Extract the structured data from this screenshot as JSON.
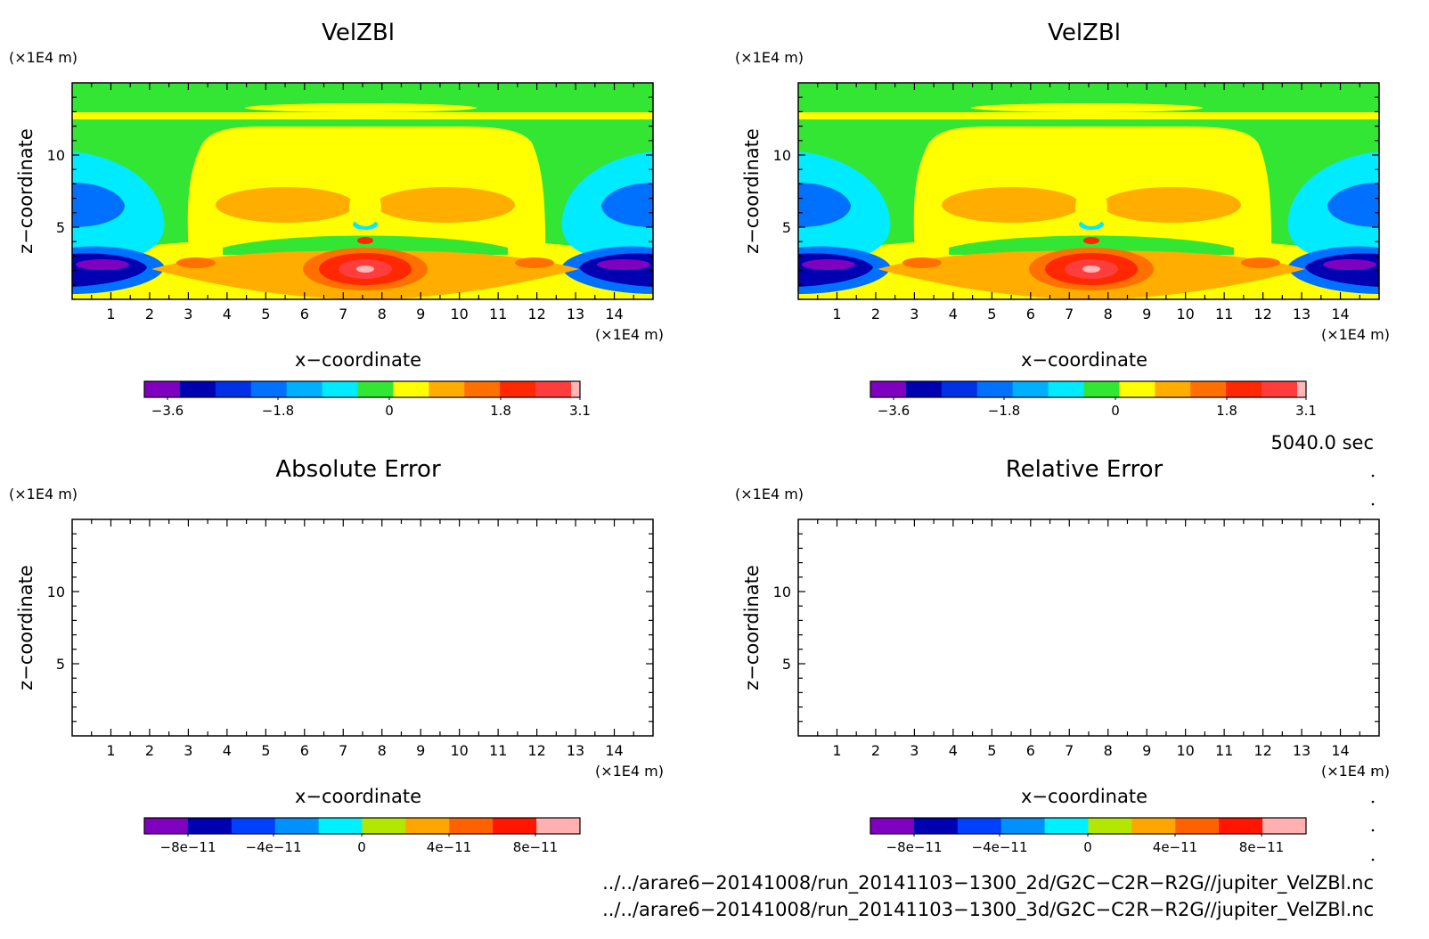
{
  "chart_data": [
    {
      "id": "tl",
      "type": "heatmap",
      "title": "VelZBl",
      "ylabel": "z−coordinate",
      "xlabel": "x−coordinate",
      "x_unit": "(×1E4 m)",
      "y_unit": "(×1E4 m)",
      "xlim": [
        0,
        15
      ],
      "ylim": [
        0,
        15
      ],
      "x_ticks": [
        "1",
        "2",
        "3",
        "4",
        "5",
        "6",
        "7",
        "8",
        "9",
        "10",
        "11",
        "12",
        "13",
        "14"
      ],
      "y_ticks": [
        "5",
        "10"
      ],
      "colorbar": {
        "labels": [
          "−3.6",
          "−1.8",
          "0",
          "1.8",
          "3.1"
        ],
        "colors": [
          "#7f00bf",
          "#0000b3",
          "#0030e6",
          "#0070ff",
          "#00b0ff",
          "#00ebff",
          "#33e633",
          "#ffff00",
          "#ffae00",
          "#ff7000",
          "#ff2800",
          "#ff3d3d",
          "#ffb6b6"
        ]
      },
      "filled": true
    },
    {
      "id": "tr",
      "type": "heatmap",
      "title": "VelZBl",
      "ylabel": "z−coordinate",
      "xlabel": "x−coordinate",
      "x_unit": "(×1E4 m)",
      "y_unit": "(×1E4 m)",
      "xlim": [
        0,
        15
      ],
      "ylim": [
        0,
        15
      ],
      "x_ticks": [
        "1",
        "2",
        "3",
        "4",
        "5",
        "6",
        "7",
        "8",
        "9",
        "10",
        "11",
        "12",
        "13",
        "14"
      ],
      "y_ticks": [
        "5",
        "10"
      ],
      "colorbar": {
        "labels": [
          "−3.6",
          "−1.8",
          "0",
          "1.8",
          "3.1"
        ],
        "colors": [
          "#7f00bf",
          "#0000b3",
          "#0030e6",
          "#0070ff",
          "#00b0ff",
          "#00ebff",
          "#33e633",
          "#ffff00",
          "#ffae00",
          "#ff7000",
          "#ff2800",
          "#ff3d3d",
          "#ffb6b6"
        ]
      },
      "filled": true
    },
    {
      "id": "bl",
      "type": "heatmap",
      "title": "Absolute Error",
      "ylabel": "z−coordinate",
      "xlabel": "x−coordinate",
      "x_unit": "(×1E4 m)",
      "y_unit": "(×1E4 m)",
      "xlim": [
        0,
        15
      ],
      "ylim": [
        0,
        15
      ],
      "x_ticks": [
        "1",
        "2",
        "3",
        "4",
        "5",
        "6",
        "7",
        "8",
        "9",
        "10",
        "11",
        "12",
        "13",
        "14"
      ],
      "y_ticks": [
        "5",
        "10"
      ],
      "colorbar": {
        "labels": [
          "−8e−11",
          "−4e−11",
          "0",
          "4e−11",
          "8e−11"
        ],
        "colors": [
          "#7f00bf",
          "#0000b3",
          "#0040ff",
          "#0090ff",
          "#00f0ff",
          "#b3e600",
          "#ffa500",
          "#ff6000",
          "#ff1500",
          "#ffb0b0"
        ]
      },
      "filled": false
    },
    {
      "id": "br",
      "type": "heatmap",
      "title": "Relative Error",
      "ylabel": "z−coordinate",
      "xlabel": "x−coordinate",
      "x_unit": "(×1E4 m)",
      "y_unit": "(×1E4 m)",
      "xlim": [
        0,
        15
      ],
      "ylim": [
        0,
        15
      ],
      "x_ticks": [
        "1",
        "2",
        "3",
        "4",
        "5",
        "6",
        "7",
        "8",
        "9",
        "10",
        "11",
        "12",
        "13",
        "14"
      ],
      "y_ticks": [
        "5",
        "10"
      ],
      "colorbar": {
        "labels": [
          "−8e−11",
          "−4e−11",
          "0",
          "4e−11",
          "8e−11"
        ],
        "colors": [
          "#7f00bf",
          "#0000b3",
          "#0040ff",
          "#0090ff",
          "#00f0ff",
          "#b3e600",
          "#ffa500",
          "#ff6000",
          "#ff1500",
          "#ffb0b0"
        ]
      },
      "filled": false
    }
  ],
  "time_label": "5040.0 sec",
  "footer": {
    "line1": "../../arare6−20141008/run_20141103−1300_2d/G2C−C2R−R2G//jupiter_VelZBl.nc",
    "line2": "../../arare6−20141008/run_20141103−1300_3d/G2C−C2R−R2G//jupiter_VelZBl.nc"
  }
}
